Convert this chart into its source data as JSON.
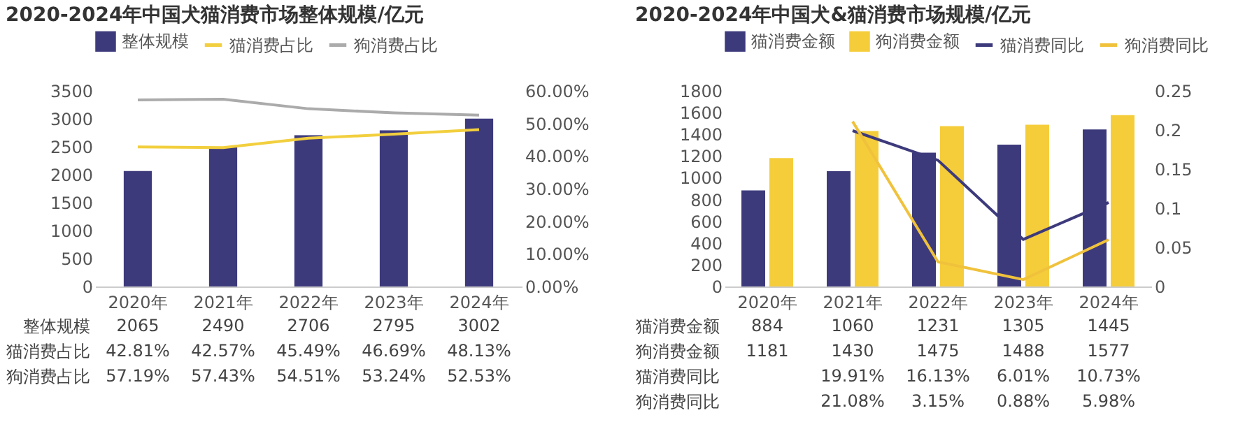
{
  "chart_data": [
    {
      "type": "bar",
      "title": "2020-2024年中国犬猫消费市场整体规模/亿元",
      "categories": [
        "2020年",
        "2021年",
        "2022年",
        "2023年",
        "2024年"
      ],
      "legend": "top",
      "ylim": [
        0,
        3500
      ],
      "yticks": [
        0,
        500,
        1000,
        1500,
        2000,
        2500,
        3000,
        3500
      ],
      "y2lim": [
        0,
        60
      ],
      "y2ticks": [
        {
          "value": 0,
          "label": "0.00%"
        },
        {
          "value": 10,
          "label": "10.00%"
        },
        {
          "value": 20,
          "label": "20.00%"
        },
        {
          "value": 30,
          "label": "30.00%"
        },
        {
          "value": 40,
          "label": "40.00%"
        },
        {
          "value": 50,
          "label": "50.00%"
        },
        {
          "value": 60,
          "label": "60.00%"
        }
      ],
      "series": [
        {
          "name": "整体规模",
          "color": "#3d3a7c",
          "values": [
            2065,
            2490,
            2706,
            2795,
            3002
          ],
          "value_labels": [
            "2065",
            "2490",
            "2706",
            "2795",
            "3002"
          ]
        },
        {
          "name": "猫消费占比",
          "type": "line",
          "axis": "y2",
          "color": "#f2cf3e",
          "values": [
            42.81,
            42.57,
            45.49,
            46.69,
            48.13
          ],
          "value_labels": [
            "42.81%",
            "42.57%",
            "45.49%",
            "46.69%",
            "48.13%"
          ]
        },
        {
          "name": "狗消费占比",
          "type": "line",
          "axis": "y2",
          "color": "#ababab",
          "values": [
            57.19,
            57.43,
            54.51,
            53.24,
            52.53
          ],
          "value_labels": [
            "57.19%",
            "57.43%",
            "54.51%",
            "53.24%",
            "52.53%"
          ]
        }
      ]
    },
    {
      "type": "bar",
      "title": "2020-2024年中国犬&猫消费市场规模/亿元",
      "categories": [
        "2020年",
        "2021年",
        "2022年",
        "2023年",
        "2024年"
      ],
      "legend": "top",
      "ylim": [
        0,
        1800
      ],
      "yticks": [
        0,
        200,
        400,
        600,
        800,
        1000,
        1200,
        1400,
        1600,
        1800
      ],
      "y2lim": [
        0,
        0.25
      ],
      "y2ticks": [
        0,
        0.05,
        0.1,
        0.15,
        0.2,
        0.25
      ],
      "series": [
        {
          "name": "猫消费金额",
          "color": "#3d3a7c",
          "values": [
            884,
            1060,
            1231,
            1305,
            1445
          ],
          "value_labels": [
            "884",
            "1060",
            "1231",
            "1305",
            "1445"
          ]
        },
        {
          "name": "狗消费金额",
          "color": "#f5cd3a",
          "values": [
            1181,
            1430,
            1475,
            1488,
            1577
          ],
          "value_labels": [
            "1181",
            "1430",
            "1475",
            "1488",
            "1577"
          ]
        },
        {
          "name": "猫消费同比",
          "type": "line",
          "axis": "y2",
          "color": "#3d3a7c",
          "values": [
            null,
            0.1991,
            0.1613,
            0.0601,
            0.1073
          ],
          "value_labels": [
            null,
            "19.91%",
            "16.13%",
            "6.01%",
            "10.73%"
          ]
        },
        {
          "name": "狗消费同比",
          "type": "line",
          "axis": "y2",
          "color": "#f0c23c",
          "values": [
            null,
            0.2108,
            0.0315,
            0.0088,
            0.0598
          ],
          "value_labels": [
            null,
            "21.08%",
            "3.15%",
            "0.88%",
            "5.98%"
          ]
        }
      ]
    }
  ]
}
